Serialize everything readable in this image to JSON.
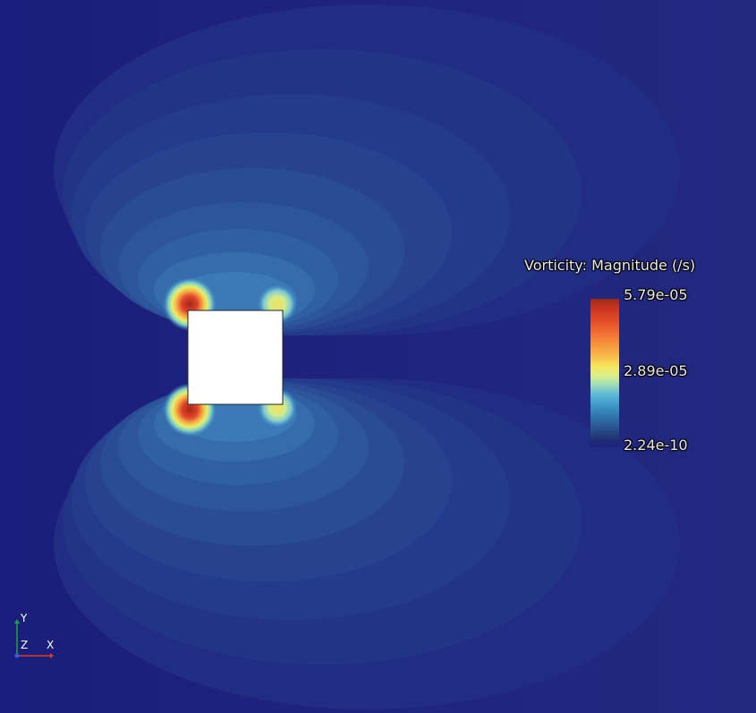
{
  "legend": {
    "title": "Vorticity: Magnitude (/s)",
    "max_label": "5.79e-05",
    "mid_label": "2.89e-05",
    "min_label": "2.24e-10"
  },
  "axes_triad": {
    "y_label": "Y",
    "z_label": "Z",
    "x_label": "X",
    "x_color": "#e23b1b",
    "y_color": "#1fa53a",
    "z_color": "#2f5fe0"
  },
  "colors": {
    "background": "#1c1e7e",
    "obstacle_fill": "#ffffff",
    "high": "#9b2b1a",
    "mid": "#f6e860",
    "low": "#1c1e7e"
  }
}
